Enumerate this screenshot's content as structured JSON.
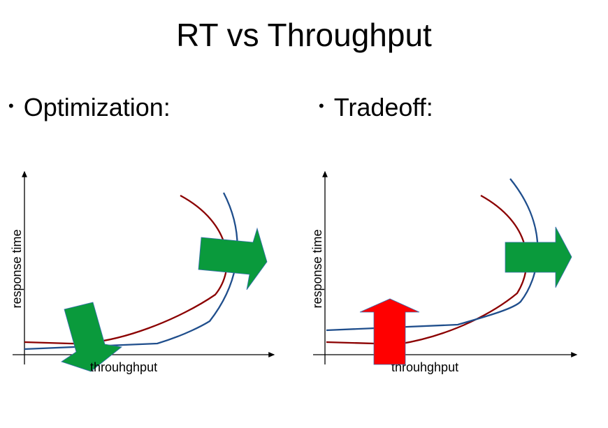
{
  "slide": {
    "title": "RT vs Throughput",
    "bullets": [
      {
        "marker": "•",
        "text": "Optimization:"
      },
      {
        "marker": "•",
        "text": "Tradeoff:"
      }
    ]
  },
  "diagrams": [
    {
      "name": "optimization",
      "ylabel": "response time",
      "xlabel": "throuhghput",
      "arrows": [
        {
          "direction": "right",
          "color": "#0a9a3c"
        },
        {
          "direction": "down",
          "color": "#0a9a3c"
        }
      ],
      "curve_colors": {
        "red": "#8b0000",
        "blue": "#1f4e8c"
      }
    },
    {
      "name": "tradeoff",
      "ylabel": "response time",
      "xlabel": "throuhghput",
      "arrows": [
        {
          "direction": "right",
          "color": "#0a9a3c"
        },
        {
          "direction": "up",
          "color": "#ff0000"
        }
      ],
      "curve_colors": {
        "red": "#8b0000",
        "blue": "#1f4e8c"
      }
    }
  ]
}
